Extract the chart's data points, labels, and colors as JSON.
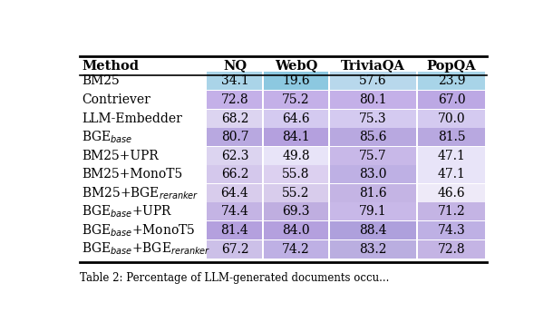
{
  "columns": [
    "Method",
    "NQ",
    "WebQ",
    "TriviaQA",
    "PopQA"
  ],
  "rows": [
    [
      34.1,
      19.6,
      57.6,
      23.9
    ],
    [
      72.8,
      75.2,
      80.1,
      67.0
    ],
    [
      68.2,
      64.6,
      75.3,
      70.0
    ],
    [
      80.7,
      84.1,
      85.6,
      81.5
    ],
    [
      62.3,
      49.8,
      75.7,
      47.1
    ],
    [
      66.2,
      55.8,
      83.0,
      47.1
    ],
    [
      64.4,
      55.2,
      81.6,
      46.6
    ],
    [
      74.4,
      69.3,
      79.1,
      71.2
    ],
    [
      81.4,
      84.0,
      88.4,
      74.3
    ],
    [
      67.2,
      74.2,
      83.2,
      72.8
    ]
  ],
  "method_labels": [
    [
      {
        "text": "BM25",
        "style": "normal"
      }
    ],
    [
      {
        "text": "Contriever",
        "style": "normal"
      }
    ],
    [
      {
        "text": "LLM-Embedder",
        "style": "normal"
      }
    ],
    [
      {
        "text": "BGE",
        "style": "normal"
      },
      {
        "text": "base",
        "style": "italic_sub"
      }
    ],
    [
      {
        "text": "BM25+UPR",
        "style": "normal"
      }
    ],
    [
      {
        "text": "BM25+MonoT5",
        "style": "normal"
      }
    ],
    [
      {
        "text": "BM25+BGE",
        "style": "normal"
      },
      {
        "text": "reranker",
        "style": "italic_sub"
      }
    ],
    [
      {
        "text": "BGE",
        "style": "normal"
      },
      {
        "text": "base",
        "style": "italic_sub"
      },
      {
        "text": "+UPR",
        "style": "normal"
      }
    ],
    [
      {
        "text": "BGE",
        "style": "normal"
      },
      {
        "text": "base",
        "style": "italic_sub"
      },
      {
        "text": "+MonoT5",
        "style": "normal"
      }
    ],
    [
      {
        "text": "BGE",
        "style": "normal"
      },
      {
        "text": "base",
        "style": "italic_sub"
      },
      {
        "text": "+BGE",
        "style": "normal"
      },
      {
        "text": "reranker",
        "style": "italic_sub"
      }
    ]
  ],
  "cell_colors": [
    [
      "#aad4e8",
      "#8cc8e0",
      "#b8d8ec",
      "#a8d4e8"
    ],
    [
      "#c4b0e8",
      "#c4b0e8",
      "#c4b0e8",
      "#bca8e4"
    ],
    [
      "#dcd4f0",
      "#d4caf0",
      "#d4caf0",
      "#d4caf0"
    ],
    [
      "#b8a8e0",
      "#b4a0de",
      "#b8a8e0",
      "#b8a8e0"
    ],
    [
      "#dcd4f0",
      "#e8e4f8",
      "#c8b8e8",
      "#e8e4f8"
    ],
    [
      "#d4c8ec",
      "#dcd0f0",
      "#beb0e4",
      "#e8e4f8"
    ],
    [
      "#d8ccec",
      "#d8ccec",
      "#c4b4e4",
      "#eeeaf8"
    ],
    [
      "#c4b4e4",
      "#bfaee0",
      "#c8b8e8",
      "#c4b4e4"
    ],
    [
      "#b4a0de",
      "#b4a0de",
      "#aea0dc",
      "#beb0e4"
    ],
    [
      "#ccc0e8",
      "#beb0e4",
      "#baaee0",
      "#c4b4e4"
    ]
  ],
  "fig_bg": "#ffffff",
  "caption": "Table 2: Percentage of LLM-generated documents occu..."
}
